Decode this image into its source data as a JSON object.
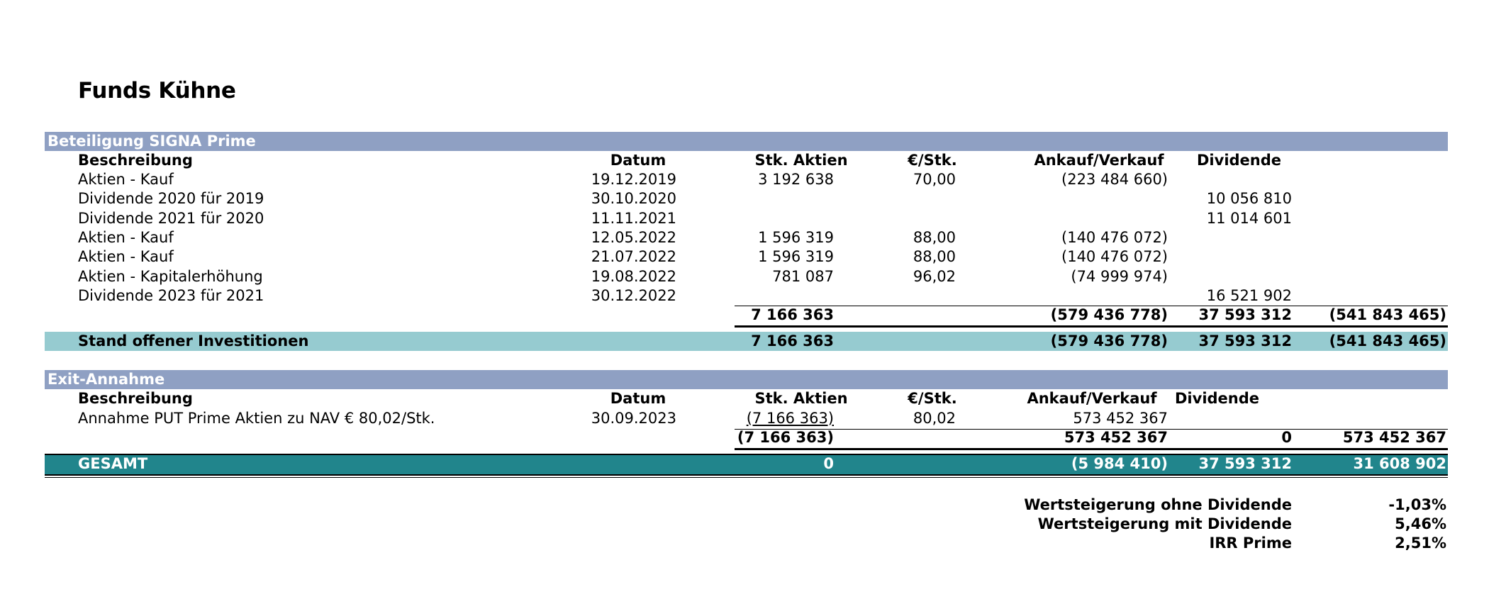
{
  "title": "Funds Kühne",
  "colors": {
    "header_band": "#8fa0c3",
    "subtotal_band": "#96cbd0",
    "total_band": "#21858c"
  },
  "section1": {
    "label": "Beteiligung SIGNA Prime",
    "headers": {
      "beschreibung": "Beschreibung",
      "datum": "Datum",
      "aktien": "Stk. Aktien",
      "preis": "€/Stk.",
      "ankauf": "Ankauf/Verkauf",
      "dividende": "Dividende"
    },
    "rows": [
      {
        "beschreibung": "Aktien - Kauf",
        "datum": "19.12.2019",
        "aktien": "3 192 638",
        "preis": "70,00",
        "ankauf": "(223 484 660)",
        "dividende": ""
      },
      {
        "beschreibung": "Dividende 2020 für 2019",
        "datum": "30.10.2020",
        "aktien": "",
        "preis": "",
        "ankauf": "",
        "dividende": "10 056 810"
      },
      {
        "beschreibung": "Dividende 2021 für 2020",
        "datum": "11.11.2021",
        "aktien": "",
        "preis": "",
        "ankauf": "",
        "dividende": "11 014 601"
      },
      {
        "beschreibung": "Aktien - Kauf",
        "datum": "12.05.2022",
        "aktien": "1 596 319",
        "preis": "88,00",
        "ankauf": "(140 476 072)",
        "dividende": ""
      },
      {
        "beschreibung": "Aktien - Kauf",
        "datum": "21.07.2022",
        "aktien": "1 596 319",
        "preis": "88,00",
        "ankauf": "(140 476 072)",
        "dividende": ""
      },
      {
        "beschreibung": "Aktien - Kapitalerhöhung",
        "datum": "19.08.2022",
        "aktien": "781 087",
        "preis": "96,02",
        "ankauf": "(74 999 974)",
        "dividende": ""
      },
      {
        "beschreibung": "Dividende 2023 für 2021",
        "datum": "30.12.2022",
        "aktien": "",
        "preis": "",
        "ankauf": "",
        "dividende": "16 521 902"
      }
    ],
    "sum": {
      "aktien": "7 166 363",
      "ankauf": "(579 436 778)",
      "dividende": "37 593 312",
      "saldo": "(541 843 465)"
    },
    "stand": {
      "label": "Stand offener Investitionen",
      "aktien": "7 166 363",
      "ankauf": "(579 436 778)",
      "dividende": "37 593 312",
      "saldo": "(541 843 465)"
    }
  },
  "section2": {
    "label": "Exit-Annahme",
    "headers": {
      "beschreibung": "Beschreibung",
      "datum": "Datum",
      "aktien": "Stk. Aktien",
      "preis": "€/Stk.",
      "ankauf": "Ankauf/Verkauf",
      "dividende": "Dividende"
    },
    "rows": [
      {
        "beschreibung": "Annahme PUT Prime Aktien zu NAV € 80,02/Stk.",
        "datum": "30.09.2023",
        "aktien": "(7 166 363)",
        "preis": "80,02",
        "ankauf": "573 452 367",
        "dividende": ""
      }
    ],
    "sum": {
      "aktien": "(7 166 363)",
      "ankauf": "573 452 367",
      "dividende": "0",
      "saldo": "573 452 367"
    }
  },
  "gesamt": {
    "label": "GESAMT",
    "aktien": "0",
    "ankauf": "(5 984 410)",
    "dividende": "37 593 312",
    "saldo": "31 608 902"
  },
  "kennzahlen": [
    {
      "label": "Wertsteigerung ohne Dividende",
      "value": "-1,03%"
    },
    {
      "label": "Wertsteigerung mit Dividende",
      "value": "5,46%"
    },
    {
      "label": "IRR Prime",
      "value": "2,51%"
    }
  ]
}
